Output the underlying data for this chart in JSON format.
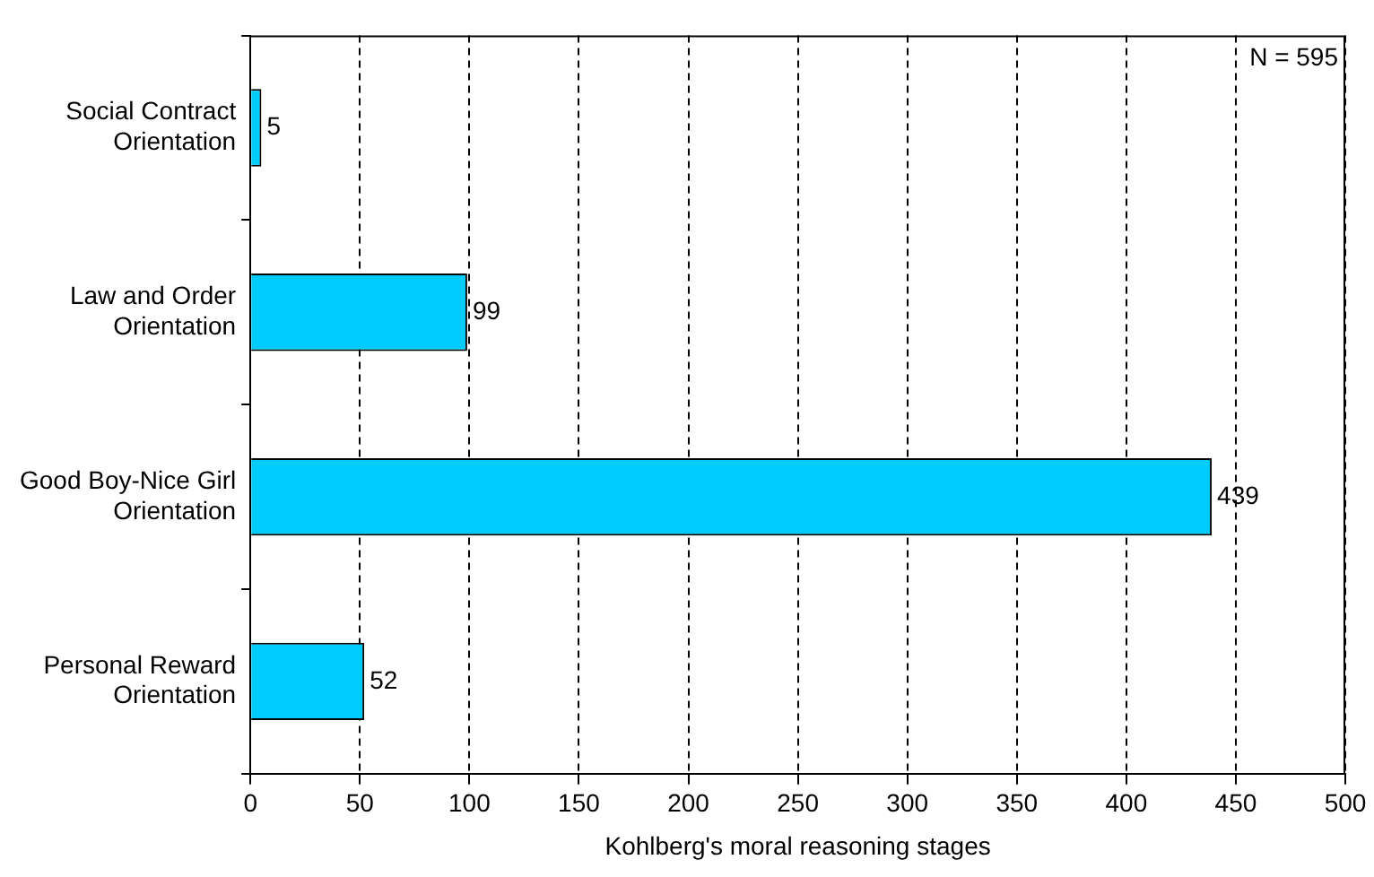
{
  "chart_data": {
    "type": "bar",
    "orientation": "horizontal",
    "xlabel": "Kohlberg's moral reasoning stages",
    "categories": [
      "Social Contract Orientation",
      "Law and Order Orientation",
      "Good Boy-Nice Girl Orientation",
      "Personal Reward Orientation"
    ],
    "values": [
      5,
      99,
      439,
      52
    ],
    "color": "#00ccff",
    "xlim": [
      0,
      500
    ],
    "xticks": [
      0,
      50,
      100,
      150,
      200,
      250,
      300,
      350,
      400,
      450,
      500
    ],
    "grid": "x",
    "data_labels": true,
    "legend": false,
    "annotations": [
      {
        "text": "N = 595"
      }
    ]
  }
}
